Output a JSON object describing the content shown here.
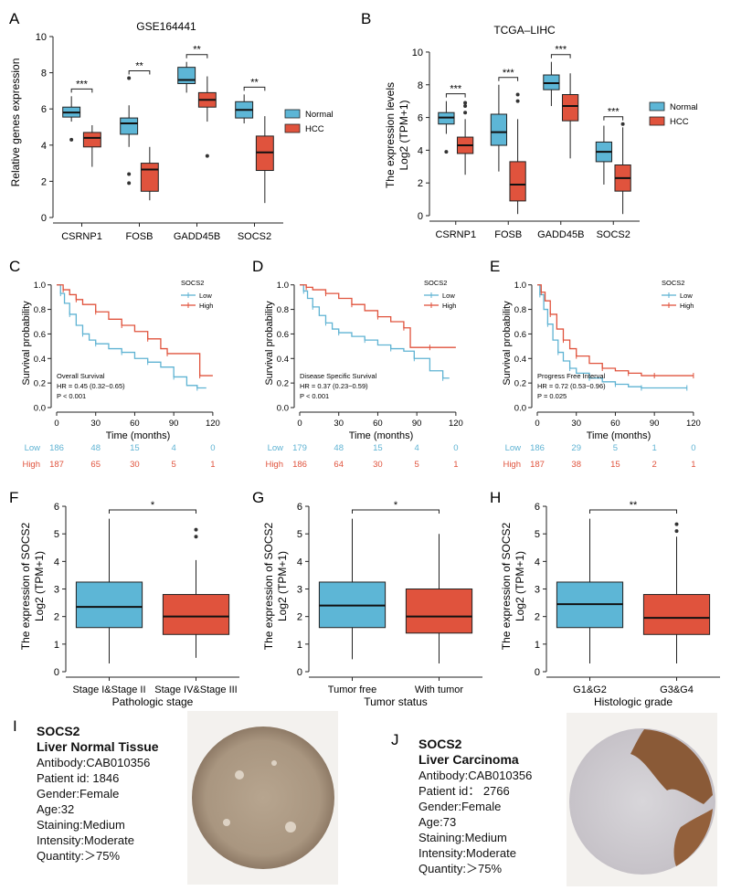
{
  "colors": {
    "normal": "#5db6d6",
    "hcc": "#e0533d",
    "low": "#5fb3d3",
    "high": "#e0533d"
  },
  "panels": {
    "A": {
      "letter": "A",
      "chart_data": {
        "type": "boxplot",
        "title": "GSE164441",
        "xlabel": "",
        "ylabel": "Relative genes expression",
        "ylim": [
          0,
          10
        ],
        "yticks": [
          0,
          2,
          4,
          6,
          8,
          10
        ],
        "categories": [
          "CSRNP1",
          "FOSB",
          "GADD45B",
          "SOCS2"
        ],
        "legend": [
          "Normal",
          "HCC"
        ],
        "series": [
          {
            "name": "Normal",
            "boxes": [
              {
                "min": 5.3,
                "q1": 5.55,
                "median": 5.8,
                "q3": 6.1,
                "max": 6.7,
                "outliers": [
                  4.3
                ]
              },
              {
                "min": 3.9,
                "q1": 4.6,
                "median": 5.2,
                "q3": 5.5,
                "max": 6.2,
                "outliers": [
                  7.7,
                  2.4,
                  1.9
                ]
              },
              {
                "min": 6.9,
                "q1": 7.4,
                "median": 7.6,
                "q3": 8.3,
                "max": 8.6,
                "outliers": []
              },
              {
                "min": 5.2,
                "q1": 5.5,
                "median": 5.95,
                "q3": 6.4,
                "max": 6.8,
                "outliers": []
              }
            ]
          },
          {
            "name": "HCC",
            "boxes": [
              {
                "min": 2.8,
                "q1": 3.9,
                "median": 4.4,
                "q3": 4.7,
                "max": 5.1,
                "outliers": []
              },
              {
                "min": 0.95,
                "q1": 1.45,
                "median": 2.65,
                "q3": 3.0,
                "max": 3.9,
                "outliers": []
              },
              {
                "min": 5.3,
                "q1": 6.1,
                "median": 6.5,
                "q3": 6.9,
                "max": 7.8,
                "outliers": [
                  3.4
                ]
              },
              {
                "min": 0.8,
                "q1": 2.6,
                "median": 3.6,
                "q3": 4.5,
                "max": 5.6,
                "outliers": []
              }
            ]
          }
        ],
        "significance": [
          "***",
          "**",
          "**",
          "**"
        ]
      }
    },
    "B": {
      "letter": "B",
      "chart_data": {
        "type": "boxplot",
        "title": "TCGA–LIHC",
        "xlabel": "",
        "ylabel_line1": "The expression levels",
        "ylabel_line2": "Log2 (TPM+1)",
        "ylim": [
          0,
          10.5
        ],
        "yticks": [
          0,
          2,
          4,
          6,
          8,
          10
        ],
        "categories": [
          "CSRNP1",
          "FOSB",
          "GADD45B",
          "SOCS2"
        ],
        "legend": [
          "Normal",
          "HCC"
        ],
        "series": [
          {
            "name": "Normal",
            "boxes": [
              {
                "min": 5.0,
                "q1": 5.6,
                "median": 6.0,
                "q3": 6.3,
                "max": 7.0,
                "outliers": [
                  3.9
                ]
              },
              {
                "min": 2.7,
                "q1": 4.3,
                "median": 5.1,
                "q3": 6.2,
                "max": 8.0,
                "outliers": []
              },
              {
                "min": 6.7,
                "q1": 7.7,
                "median": 8.1,
                "q3": 8.6,
                "max": 9.4,
                "outliers": []
              },
              {
                "min": 1.9,
                "q1": 3.3,
                "median": 3.9,
                "q3": 4.5,
                "max": 5.5,
                "outliers": []
              }
            ]
          },
          {
            "name": "HCC",
            "boxes": [
              {
                "min": 2.5,
                "q1": 3.8,
                "median": 4.3,
                "q3": 4.8,
                "max": 5.9,
                "outliers": [
                  6.3,
                  6.7,
                  6.9
                ]
              },
              {
                "min": 0.1,
                "q1": 0.9,
                "median": 1.9,
                "q3": 3.3,
                "max": 5.9,
                "outliers": [
                  7.0,
                  7.4
                ]
              },
              {
                "min": 3.5,
                "q1": 5.8,
                "median": 6.7,
                "q3": 7.4,
                "max": 8.7,
                "outliers": []
              },
              {
                "min": 0.1,
                "q1": 1.5,
                "median": 2.3,
                "q3": 3.1,
                "max": 5.4,
                "outliers": [
                  5.6
                ]
              }
            ]
          }
        ],
        "significance": [
          "***",
          "***",
          "***",
          "***"
        ]
      }
    },
    "C": {
      "letter": "C",
      "chart_data": {
        "type": "line",
        "subtype": "kaplan-meier",
        "legend_title": "SOCS2",
        "legend": [
          "Low",
          "High"
        ],
        "xlabel": "Time (months)",
        "ylabel": "Survival probability",
        "xlim": [
          0,
          125
        ],
        "ylim": [
          0,
          1.05
        ],
        "xticks": [
          0,
          30,
          60,
          90,
          120
        ],
        "yticks": [
          0.0,
          0.2,
          0.4,
          0.6,
          0.8,
          1.0
        ],
        "ytick_labels": [
          "0.0",
          "0.2",
          "0.4",
          "0.6",
          "0.8",
          "1.0"
        ],
        "annotation": [
          "Overall Survival",
          "HR = 0.45 (0.32−0.65)",
          "P < 0.001"
        ],
        "series": [
          {
            "name": "Low",
            "x": [
              0,
              3,
              6,
              10,
              15,
              20,
              25,
              30,
              40,
              50,
              60,
              70,
              80,
              90,
              100,
              108,
              115
            ],
            "y": [
              1.0,
              0.93,
              0.85,
              0.76,
              0.67,
              0.6,
              0.55,
              0.52,
              0.48,
              0.45,
              0.4,
              0.37,
              0.33,
              0.25,
              0.18,
              0.16,
              0.16
            ]
          },
          {
            "name": "High",
            "x": [
              0,
              5,
              10,
              15,
              20,
              30,
              40,
              50,
              60,
              70,
              80,
              85,
              100,
              110,
              120
            ],
            "y": [
              1.0,
              0.96,
              0.92,
              0.88,
              0.84,
              0.78,
              0.72,
              0.67,
              0.62,
              0.56,
              0.48,
              0.44,
              0.44,
              0.26,
              0.26
            ]
          }
        ],
        "risk_table": {
          "times": [
            0,
            30,
            60,
            90,
            120
          ],
          "rows": [
            {
              "label": "Low",
              "counts": [
                "186",
                "48",
                "15",
                "4",
                "0"
              ]
            },
            {
              "label": "High",
              "counts": [
                "187",
                "65",
                "30",
                "5",
                "1"
              ]
            }
          ]
        }
      }
    },
    "D": {
      "letter": "D",
      "chart_data": {
        "type": "line",
        "subtype": "kaplan-meier",
        "legend_title": "SOCS2",
        "legend": [
          "Low",
          "High"
        ],
        "xlabel": "Time (months)",
        "ylabel": "Survival probability",
        "xlim": [
          0,
          125
        ],
        "ylim": [
          0,
          1.05
        ],
        "xticks": [
          0,
          30,
          60,
          90,
          120
        ],
        "yticks": [
          0.0,
          0.2,
          0.4,
          0.6,
          0.8,
          1.0
        ],
        "ytick_labels": [
          "0.0",
          "0.2",
          "0.4",
          "0.6",
          "0.8",
          "1.0"
        ],
        "annotation": [
          "Disease Specific Survival",
          "HR = 0.37 (0.23−0.59)",
          "P < 0.001"
        ],
        "series": [
          {
            "name": "Low",
            "x": [
              0,
              3,
              6,
              10,
              15,
              20,
              25,
              30,
              40,
              50,
              60,
              70,
              80,
              88,
              100,
              110,
              115
            ],
            "y": [
              1.0,
              0.95,
              0.89,
              0.82,
              0.75,
              0.69,
              0.64,
              0.61,
              0.58,
              0.55,
              0.51,
              0.48,
              0.46,
              0.4,
              0.3,
              0.24,
              0.24
            ]
          },
          {
            "name": "High",
            "x": [
              0,
              5,
              10,
              20,
              30,
              40,
              50,
              60,
              70,
              80,
              85,
              100,
              120
            ],
            "y": [
              1.0,
              0.98,
              0.96,
              0.93,
              0.89,
              0.84,
              0.79,
              0.74,
              0.7,
              0.65,
              0.49,
              0.49,
              0.49
            ]
          }
        ],
        "risk_table": {
          "times": [
            0,
            30,
            60,
            90,
            120
          ],
          "rows": [
            {
              "label": "Low",
              "counts": [
                "179",
                "48",
                "15",
                "4",
                "0"
              ]
            },
            {
              "label": "High",
              "counts": [
                "186",
                "64",
                "30",
                "5",
                "1"
              ]
            }
          ]
        }
      }
    },
    "E": {
      "letter": "E",
      "chart_data": {
        "type": "line",
        "subtype": "kaplan-meier",
        "legend_title": "SOCS2",
        "legend": [
          "Low",
          "High"
        ],
        "xlabel": "Time (months)",
        "ylabel": "Survival probability",
        "xlim": [
          0,
          125
        ],
        "ylim": [
          0,
          1.05
        ],
        "xticks": [
          0,
          30,
          60,
          90,
          120
        ],
        "yticks": [
          0.0,
          0.2,
          0.4,
          0.6,
          0.8,
          1.0
        ],
        "ytick_labels": [
          "0.0",
          "0.2",
          "0.4",
          "0.6",
          "0.8",
          "1.0"
        ],
        "annotation": [
          "Progress Free Interval",
          "HR = 0.72 (0.53−0.96)",
          "P = 0.025"
        ],
        "series": [
          {
            "name": "Low",
            "x": [
              0,
              2,
              5,
              8,
              12,
              16,
              20,
              25,
              30,
              40,
              50,
              60,
              70,
              80,
              100,
              115
            ],
            "y": [
              1.0,
              0.92,
              0.8,
              0.68,
              0.55,
              0.45,
              0.38,
              0.32,
              0.28,
              0.24,
              0.21,
              0.19,
              0.17,
              0.16,
              0.16,
              0.16
            ]
          },
          {
            "name": "High",
            "x": [
              0,
              3,
              6,
              10,
              15,
              20,
              25,
              30,
              40,
              50,
              60,
              70,
              80,
              90,
              100,
              120
            ],
            "y": [
              1.0,
              0.94,
              0.87,
              0.76,
              0.64,
              0.55,
              0.48,
              0.42,
              0.36,
              0.32,
              0.3,
              0.28,
              0.26,
              0.26,
              0.26,
              0.26
            ]
          }
        ],
        "risk_table": {
          "times": [
            0,
            30,
            60,
            90,
            120
          ],
          "rows": [
            {
              "label": "Low",
              "counts": [
                "186",
                "29",
                "5",
                "1",
                "0"
              ]
            },
            {
              "label": "High",
              "counts": [
                "187",
                "38",
                "15",
                "2",
                "1"
              ]
            }
          ]
        }
      }
    },
    "F": {
      "letter": "F",
      "chart_data": {
        "type": "boxplot",
        "xlabel": "Pathologic stage",
        "ylabel_line1": "The expression of SOCS2",
        "ylabel_line2": "Log2 (TPM+1)",
        "ylim": [
          0,
          6.2
        ],
        "yticks": [
          0,
          1,
          2,
          3,
          4,
          5,
          6
        ],
        "categories": [
          "Stage I&Stage II",
          "Stage IV&Stage III"
        ],
        "boxes": [
          {
            "min": 0.3,
            "q1": 1.6,
            "median": 2.35,
            "q3": 3.25,
            "max": 5.55,
            "outliers": [],
            "color": "#5db6d6"
          },
          {
            "min": 0.5,
            "q1": 1.35,
            "median": 2.0,
            "q3": 2.8,
            "max": 4.05,
            "outliers": [
              4.9,
              5.15
            ],
            "color": "#e0533d"
          }
        ],
        "significance": "*"
      }
    },
    "G": {
      "letter": "G",
      "chart_data": {
        "type": "boxplot",
        "xlabel": "Tumor status",
        "ylabel_line1": "The expression of SOCS2",
        "ylabel_line2": "Log2 (TPM+1)",
        "ylim": [
          0,
          6.2
        ],
        "yticks": [
          0,
          1,
          2,
          3,
          4,
          5,
          6
        ],
        "categories": [
          "Tumor free",
          "With tumor"
        ],
        "boxes": [
          {
            "min": 0.45,
            "q1": 1.6,
            "median": 2.4,
            "q3": 3.25,
            "max": 5.55,
            "outliers": [],
            "color": "#5db6d6"
          },
          {
            "min": 0.3,
            "q1": 1.4,
            "median": 2.0,
            "q3": 3.0,
            "max": 5.0,
            "outliers": [],
            "color": "#e0533d"
          }
        ],
        "significance": "*"
      }
    },
    "H": {
      "letter": "H",
      "chart_data": {
        "type": "boxplot",
        "xlabel": "Histologic grade",
        "ylabel_line1": "The expression of SOCS2",
        "ylabel_line2": "Log2 (TPM+1)",
        "ylim": [
          0,
          6.2
        ],
        "yticks": [
          0,
          1,
          2,
          3,
          4,
          5,
          6
        ],
        "categories": [
          "G1&G2",
          "G3&G4"
        ],
        "boxes": [
          {
            "min": 0.3,
            "q1": 1.6,
            "median": 2.45,
            "q3": 3.25,
            "max": 5.55,
            "outliers": [],
            "color": "#5db6d6"
          },
          {
            "min": 0.3,
            "q1": 1.35,
            "median": 1.95,
            "q3": 2.8,
            "max": 4.9,
            "outliers": [
              5.1,
              5.35
            ],
            "color": "#e0533d"
          }
        ],
        "significance": "**"
      }
    }
  },
  "ihc": {
    "I": {
      "letter": "I",
      "gene": "SOCS2",
      "tissue": "Liver Normal Tissue",
      "antibody": "Antibody:CAB010356",
      "patient": "Patient id:  1846",
      "gender": "Gender:Female",
      "age": "Age:32",
      "staining": "Staining:Medium",
      "intensity": "Intensity:Moderate",
      "quantity": "Quantity:＞75%"
    },
    "J": {
      "letter": "J",
      "gene": "SOCS2",
      "tissue": "Liver Carcinoma",
      "antibody": "Antibody:CAB010356",
      "patient": "Patient id： 2766",
      "gender": "Gender:Female",
      "age": "Age:73",
      "staining": "Staining:Medium",
      "intensity": "Intensity:Moderate",
      "quantity": "Quantity:＞75%"
    }
  }
}
